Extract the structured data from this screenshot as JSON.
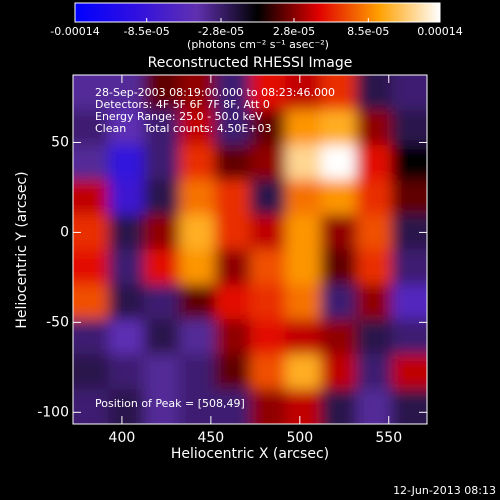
{
  "chart_data": {
    "type": "image",
    "title": "Reconstructed RHESSI Image",
    "x_label": "Heliocentric X (arcsec)",
    "y_label": "Heliocentric Y (arcsec)",
    "xlim": [
      372.5,
      571.5
    ],
    "ylim": [
      -106.5,
      87.5
    ],
    "xticks": [
      400,
      450,
      500,
      550
    ],
    "yticks": [
      -100,
      -50,
      0,
      50
    ],
    "colorbar": {
      "label": "(photons cm⁻² s⁻¹ asec⁻²)",
      "lim": [
        -0.00014,
        0.00014
      ],
      "ticks": [
        -0.00014,
        {
          "value": -8.5e-05,
          "label": "-8.5e-05"
        },
        {
          "value": -2.8e-05,
          "label": "-2.8e-05"
        },
        {
          "value": 2.8e-05,
          "label": "2.8e-05"
        },
        {
          "value": 8.5e-05,
          "label": "8.5e-05"
        },
        0.00014
      ],
      "colormap": [
        "#0000ff",
        "#3010e0",
        "#6030b0",
        "#000000",
        "#e00000",
        "#ffa000",
        "#ffffff"
      ]
    },
    "z": [
      [
        -4e-05,
        -4e-05,
        2e-05,
        3e-05,
        -3e-05,
        5e-05,
        4e-05,
        6e-05,
        -2e-05,
        -3e-05
      ],
      [
        -3e-05,
        -5e-05,
        -3e-05,
        4e-05,
        -3e-05,
        2e-05,
        9e-05,
        0.0001,
        3e-05,
        -2e-05
      ],
      [
        -4e-05,
        -9e-05,
        -3e-05,
        6e-05,
        2e-05,
        3e-05,
        0.00012,
        0.00014,
        5e-05,
        0
      ],
      [
        4e-05,
        -8e-05,
        -2e-05,
        8e-05,
        6e-05,
        -2e-05,
        8e-05,
        9e-05,
        6e-05,
        2e-05
      ],
      [
        6e-05,
        -2e-05,
        3e-05,
        0.0001,
        6e-05,
        4e-05,
        9e-05,
        3e-05,
        7e-05,
        -2e-05
      ],
      [
        5e-05,
        -3e-05,
        5e-05,
        9e-05,
        3e-05,
        7e-05,
        9e-05,
        2e-05,
        6e-05,
        -3e-05
      ],
      [
        7e-05,
        -2e-05,
        -3e-05,
        2e-05,
        5e-05,
        6e-05,
        8e-05,
        -3e-05,
        3e-05,
        -6e-05
      ],
      [
        -3e-05,
        -5e-05,
        -2e-05,
        -4e-05,
        3e-05,
        5e-05,
        4e-05,
        3e-05,
        -2e-05,
        -3e-05
      ],
      [
        -2e-05,
        -3e-05,
        -4e-05,
        -3e-05,
        2e-05,
        7e-05,
        0.0001,
        4e-05,
        -3e-05,
        4e-05
      ],
      [
        -3e-05,
        -2e-05,
        -4e-05,
        -3e-05,
        -3e-05,
        3e-05,
        4e-05,
        -2e-05,
        -4e-05,
        -2e-05
      ]
    ],
    "annotations": [
      "28-Sep-2003 08:19:00.000 to 08:23:46.000",
      "Detectors: 4F 5F 6F 7F 8F, Att 0",
      "Energy Range: 25.0 - 50.0 keV",
      "Clean     Total counts: 4.50E+03"
    ],
    "peak_label": "Position of Peak = [508,49]",
    "timestamp": "12-Jun-2013 08:13"
  }
}
